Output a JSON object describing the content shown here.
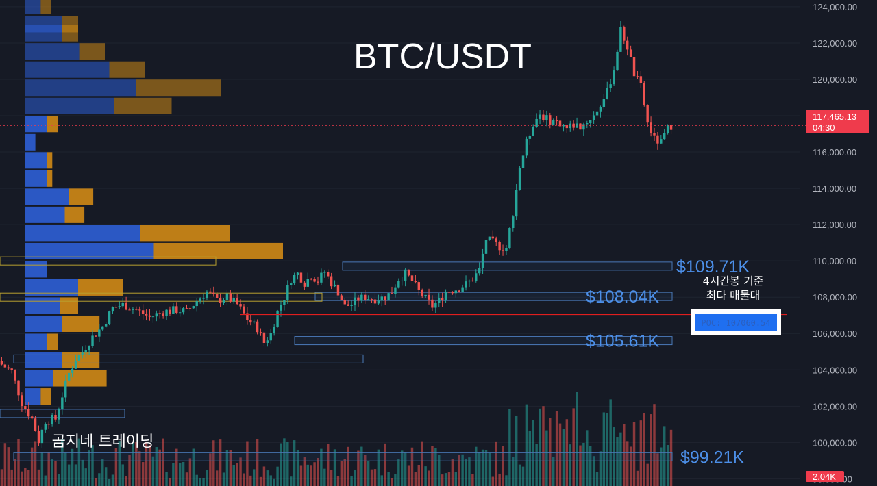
{
  "colors": {
    "background": "#161a25",
    "up": "#26a69a",
    "down": "#ef5350",
    "vp_buy": "#2e5fd6",
    "vp_sell": "#d08a16",
    "level_line": "#4a79b8",
    "poc_line": "#e01e1e",
    "last_price_bg": "#ef3b4c"
  },
  "chart_data": {
    "type": "candlestick",
    "title": "BTC/USDT",
    "ylim": [
      97600,
      124600
    ],
    "y_ticks": [
      98000,
      100000,
      102000,
      104000,
      106000,
      108000,
      110000,
      112000,
      114000,
      116000,
      118000,
      120000,
      122000,
      124000
    ],
    "y_tick_labels": [
      "98,000.00",
      "100,000.00",
      "102,000.00",
      "104,000.00",
      "106,000.00",
      "108,000.00",
      "110,000.00",
      "112,000.00",
      "114,000.00",
      "116,000.00",
      "118,000.00",
      "120,000.00",
      "122,000.00",
      "124,000.00"
    ],
    "last_price": 117465.13,
    "last_price_label": "117,465.13",
    "countdown": "04:30",
    "volume_label": "2.04K",
    "close_path": [
      [
        0,
        104300
      ],
      [
        3,
        103900
      ],
      [
        6,
        102200
      ],
      [
        9,
        101300
      ],
      [
        11,
        100100
      ],
      [
        13,
        101200
      ],
      [
        16,
        101300
      ],
      [
        18,
        102600
      ],
      [
        20,
        103800
      ],
      [
        22,
        104600
      ],
      [
        24,
        105000
      ],
      [
        27,
        105800
      ],
      [
        30,
        106400
      ],
      [
        33,
        107400
      ],
      [
        36,
        107600
      ],
      [
        40,
        107300
      ],
      [
        44,
        106900
      ],
      [
        48,
        107200
      ],
      [
        52,
        107300
      ],
      [
        55,
        107200
      ],
      [
        58,
        107800
      ],
      [
        61,
        108300
      ],
      [
        64,
        107800
      ],
      [
        67,
        108000
      ],
      [
        70,
        107600
      ],
      [
        73,
        106800
      ],
      [
        76,
        106300
      ],
      [
        78,
        105500
      ],
      [
        80,
        106000
      ],
      [
        82,
        107200
      ],
      [
        84,
        108000
      ],
      [
        86,
        109000
      ],
      [
        88,
        109300
      ],
      [
        90,
        108800
      ],
      [
        92,
        109200
      ],
      [
        94,
        108900
      ],
      [
        96,
        109400
      ],
      [
        98,
        108800
      ],
      [
        100,
        108300
      ],
      [
        102,
        107500
      ],
      [
        104,
        107600
      ],
      [
        106,
        107900
      ],
      [
        108,
        108000
      ],
      [
        111,
        107900
      ],
      [
        114,
        108000
      ],
      [
        116,
        108300
      ],
      [
        118,
        109000
      ],
      [
        120,
        109300
      ],
      [
        122,
        108900
      ],
      [
        124,
        108300
      ],
      [
        126,
        107900
      ],
      [
        128,
        107500
      ],
      [
        130,
        107800
      ],
      [
        132,
        108300
      ],
      [
        134,
        108400
      ],
      [
        136,
        108500
      ],
      [
        138,
        108700
      ],
      [
        140,
        109000
      ],
      [
        142,
        109500
      ],
      [
        144,
        111200
      ],
      [
        146,
        111000
      ],
      [
        148,
        110800
      ],
      [
        150,
        110700
      ],
      [
        152,
        112700
      ],
      [
        154,
        115200
      ],
      [
        156,
        116500
      ],
      [
        158,
        117600
      ],
      [
        160,
        118100
      ],
      [
        162,
        117800
      ],
      [
        164,
        117700
      ],
      [
        166,
        117600
      ],
      [
        168,
        117300
      ],
      [
        170,
        117500
      ],
      [
        172,
        117400
      ],
      [
        174,
        117700
      ],
      [
        176,
        118000
      ],
      [
        178,
        118600
      ],
      [
        180,
        119300
      ],
      [
        182,
        120600
      ],
      [
        184,
        122700
      ],
      [
        186,
        121800
      ],
      [
        188,
        120300
      ],
      [
        190,
        119600
      ],
      [
        192,
        117600
      ],
      [
        194,
        116700
      ],
      [
        196,
        116500
      ],
      [
        198,
        117300
      ],
      [
        199,
        117465
      ]
    ],
    "volume_profile": {
      "rows": [
        {
          "price": 124000,
          "buy": 0.18,
          "sell": 0.12
        },
        {
          "price": 123000,
          "buy": 0.42,
          "sell": 0.18
        },
        {
          "price": 122500,
          "buy": 0.42,
          "sell": 0.18
        },
        {
          "price": 121500,
          "buy": 0.62,
          "sell": 0.28
        },
        {
          "price": 120500,
          "buy": 0.95,
          "sell": 0.4
        },
        {
          "price": 119500,
          "buy": 1.25,
          "sell": 0.95
        },
        {
          "price": 118500,
          "buy": 1.0,
          "sell": 0.65
        },
        {
          "price": 117500,
          "buy": 0.25,
          "sell": 0.12
        },
        {
          "price": 116500,
          "buy": 0.12,
          "sell": 0.0
        },
        {
          "price": 115500,
          "buy": 0.25,
          "sell": 0.06
        },
        {
          "price": 114500,
          "buy": 0.25,
          "sell": 0.06
        },
        {
          "price": 113500,
          "buy": 0.5,
          "sell": 0.27
        },
        {
          "price": 112500,
          "buy": 0.45,
          "sell": 0.22
        },
        {
          "price": 111500,
          "buy": 1.3,
          "sell": 1.0
        },
        {
          "price": 110500,
          "buy": 1.45,
          "sell": 1.45
        },
        {
          "price": 109500,
          "buy": 0.25,
          "sell": 0.0
        },
        {
          "price": 108500,
          "buy": 0.6,
          "sell": 0.5
        },
        {
          "price": 107500,
          "buy": 0.4,
          "sell": 0.2
        },
        {
          "price": 106500,
          "buy": 0.42,
          "sell": 0.42
        },
        {
          "price": 105500,
          "buy": 0.25,
          "sell": 0.12
        },
        {
          "price": 104500,
          "buy": 0.42,
          "sell": 0.42
        },
        {
          "price": 103500,
          "buy": 0.32,
          "sell": 0.6
        },
        {
          "price": 102500,
          "buy": 0.18,
          "sell": 0.12
        }
      ],
      "faded_rows": 7
    }
  },
  "levels": [
    {
      "price": 109710,
      "label": "$109.71K"
    },
    {
      "price": 108040,
      "label": "$108.04K"
    },
    {
      "price": 105610,
      "label": "$105.61K"
    },
    {
      "price": 99210,
      "label": "$99.21K"
    }
  ],
  "poc": {
    "price": 107060.54,
    "label": "POC: 107060.54",
    "annotation_line1": "4시간봉 기준",
    "annotation_line2": "최다 매물대"
  },
  "brand": "곰지네 트레이딩"
}
